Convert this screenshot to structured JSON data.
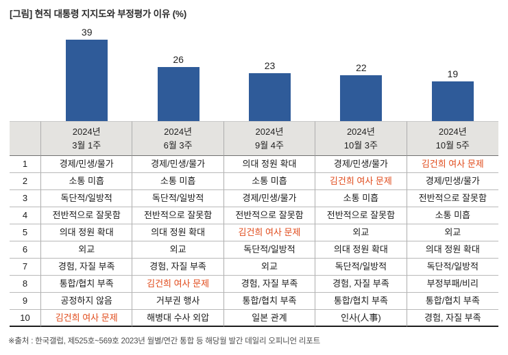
{
  "title": "[그림] 현직 대통령 지지도와 부정평가 이유 (%)",
  "source_note": "※출처 : 한국갤럽, 제525호~569호 2023년 월별/연간 통합 등 해당월 발간 데일리 오피니언 리포트",
  "colors": {
    "bar": "#2F5B99",
    "highlight": "#E04A1A",
    "header_bg": "#E4E3E0"
  },
  "chart_data": [
    {
      "type": "bar",
      "title": "[그림] 현직 대통령 지지도와 부정평가 이유 (%)",
      "categories": [
        "2024년 3월 1주",
        "2024년 6월 3주",
        "2024년 9월 4주",
        "2024년 10월 3주",
        "2024년 10월 5주"
      ],
      "values": [
        39,
        26,
        23,
        22,
        19
      ],
      "bar_color": "#2F5B99",
      "value_labels_shown": true,
      "xlabel": "",
      "ylabel": "",
      "ylim": [
        0,
        42
      ],
      "grid": false,
      "axes_hidden": true,
      "legend": "none"
    },
    {
      "type": "table",
      "rank_header": "",
      "col_headers": [
        [
          "2024년",
          "3월 1주"
        ],
        [
          "2024년",
          "6월 3주"
        ],
        [
          "2024년",
          "9월 4주"
        ],
        [
          "2024년",
          "10월 3주"
        ],
        [
          "2024년",
          "10월 5주"
        ]
      ],
      "highlight_text": "김건희 여사 문제",
      "rows": [
        {
          "rank": "1",
          "cells": [
            "경제/민생/물가",
            "경제/민생/물가",
            "의대 정원 확대",
            "경제/민생/물가",
            "김건희 여사 문제"
          ]
        },
        {
          "rank": "2",
          "cells": [
            "소통 미흡",
            "소통 미흡",
            "소통 미흡",
            "김건희 여사 문제",
            "경제/민생/물가"
          ]
        },
        {
          "rank": "3",
          "cells": [
            "독단적/일방적",
            "독단적/일방적",
            "경제/민생/물가",
            "소통 미흡",
            "전반적으로 잘못함"
          ]
        },
        {
          "rank": "4",
          "cells": [
            "전반적으로 잘못함",
            "전반적으로 잘못함",
            "전반적으로 잘못함",
            "전반적으로 잘못함",
            "소통 미흡"
          ]
        },
        {
          "rank": "5",
          "cells": [
            "의대 정원 확대",
            "의대 정원 확대",
            "김건희 여사 문제",
            "외교",
            "외교"
          ]
        },
        {
          "rank": "6",
          "cells": [
            "외교",
            "외교",
            "독단적/일방적",
            "의대 정원 확대",
            "의대 정원 확대"
          ]
        },
        {
          "rank": "7",
          "cells": [
            "경험, 자질 부족",
            "경험, 자질 부족",
            "외교",
            "독단적/일방적",
            "독단적/일방적"
          ]
        },
        {
          "rank": "8",
          "cells": [
            "통합/협치 부족",
            "김건희 여사 문제",
            "경험, 자질 부족",
            "경험, 자질 부족",
            "부정부패/비리"
          ]
        },
        {
          "rank": "9",
          "cells": [
            "공정하지 않음",
            "거부권 행사",
            "통합/협치 부족",
            "통합/협치 부족",
            "통합/협치 부족"
          ]
        },
        {
          "rank": "10",
          "cells": [
            "김건희 여사 문제",
            "해병대 수사 외압",
            "일본 관계",
            "인사(人事)",
            "경험, 자질 부족"
          ]
        }
      ]
    }
  ]
}
